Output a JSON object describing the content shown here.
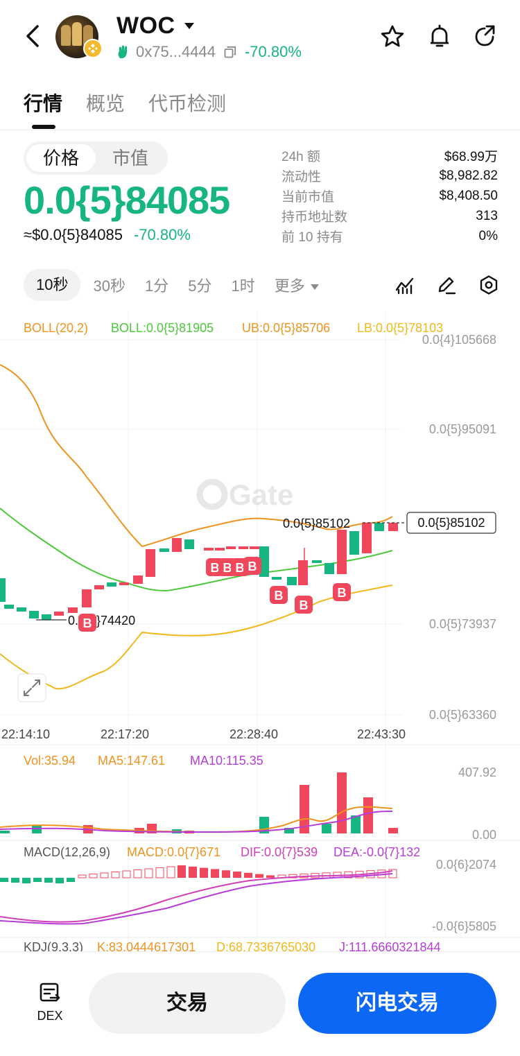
{
  "header": {
    "title": "WOC",
    "address": "0x75...4444",
    "change_pct": "-70.80%"
  },
  "tabs": [
    {
      "label": "行情"
    },
    {
      "label": "概览"
    },
    {
      "label": "代币检测"
    }
  ],
  "price": {
    "segment": [
      "价格",
      "市值"
    ],
    "main": "0.0{5}84085",
    "approx": "≈$0.0{5}84085",
    "approx_change": "-70.80%"
  },
  "stats": [
    {
      "key": "24h  额",
      "value": "$68.99万"
    },
    {
      "key": "流动性",
      "value": "$8,982.82"
    },
    {
      "key": "当前市值",
      "value": "$8,408.50"
    },
    {
      "key": "持币地址数",
      "value": "313"
    },
    {
      "key": "前 10 持有",
      "value": "0%"
    }
  ],
  "intervals": [
    "10秒",
    "30秒",
    "1分",
    "5分",
    "1时",
    "更多"
  ],
  "chart": {
    "watermark": "Gate",
    "boll_legend": {
      "a": "BOLL(20,2)",
      "b": "BOLL:0.0{5}81905",
      "c": "UB:0.0{5}85706",
      "d": "LB:0.0{5}78103"
    },
    "y_ticks": [
      "0.0{4}105668",
      "0.0{5}95091",
      "0.0{5}73937",
      "0.0{5}63360"
    ],
    "x_ticks": [
      "22:14:10",
      "22:17:20",
      "22:28:40",
      "22:43:30"
    ],
    "high_marker": "0.0{5}85102",
    "price_tag": "0.0{5}85102",
    "low_marker": "0.0{5}74420",
    "buy_marker": "B",
    "vol_legend": {
      "a": "Vol:35.94",
      "b": "MA5:147.61",
      "c": "MA10:115.35"
    },
    "vol_ticks": [
      "407.92",
      "0.00"
    ],
    "macd_legend": {
      "a": "MACD(12,26,9)",
      "b": "MACD:0.0{7}671",
      "c": "DIF:0.0{7}539",
      "d": "DEA:-0.0{7}132"
    },
    "macd_ticks": [
      "0.0{6}2074",
      "-0.0{6}5805"
    ],
    "kdj_legend": {
      "a": "KDJ(9,3,3)",
      "b": "K:83.0444617301",
      "c": "D:68.7336765030",
      "d": "J:111.6660321844"
    },
    "colors": {
      "up": "#16b581",
      "down": "#f0475d",
      "boll_mid": "#4cc93a",
      "boll_ub": "#f0931e",
      "boll_lb": "#f2b81a",
      "ma10": "#b63dd8"
    }
  },
  "bottom": {
    "dex_label": "DEX",
    "trade_label": "交易",
    "flash_label": "闪电交易"
  }
}
